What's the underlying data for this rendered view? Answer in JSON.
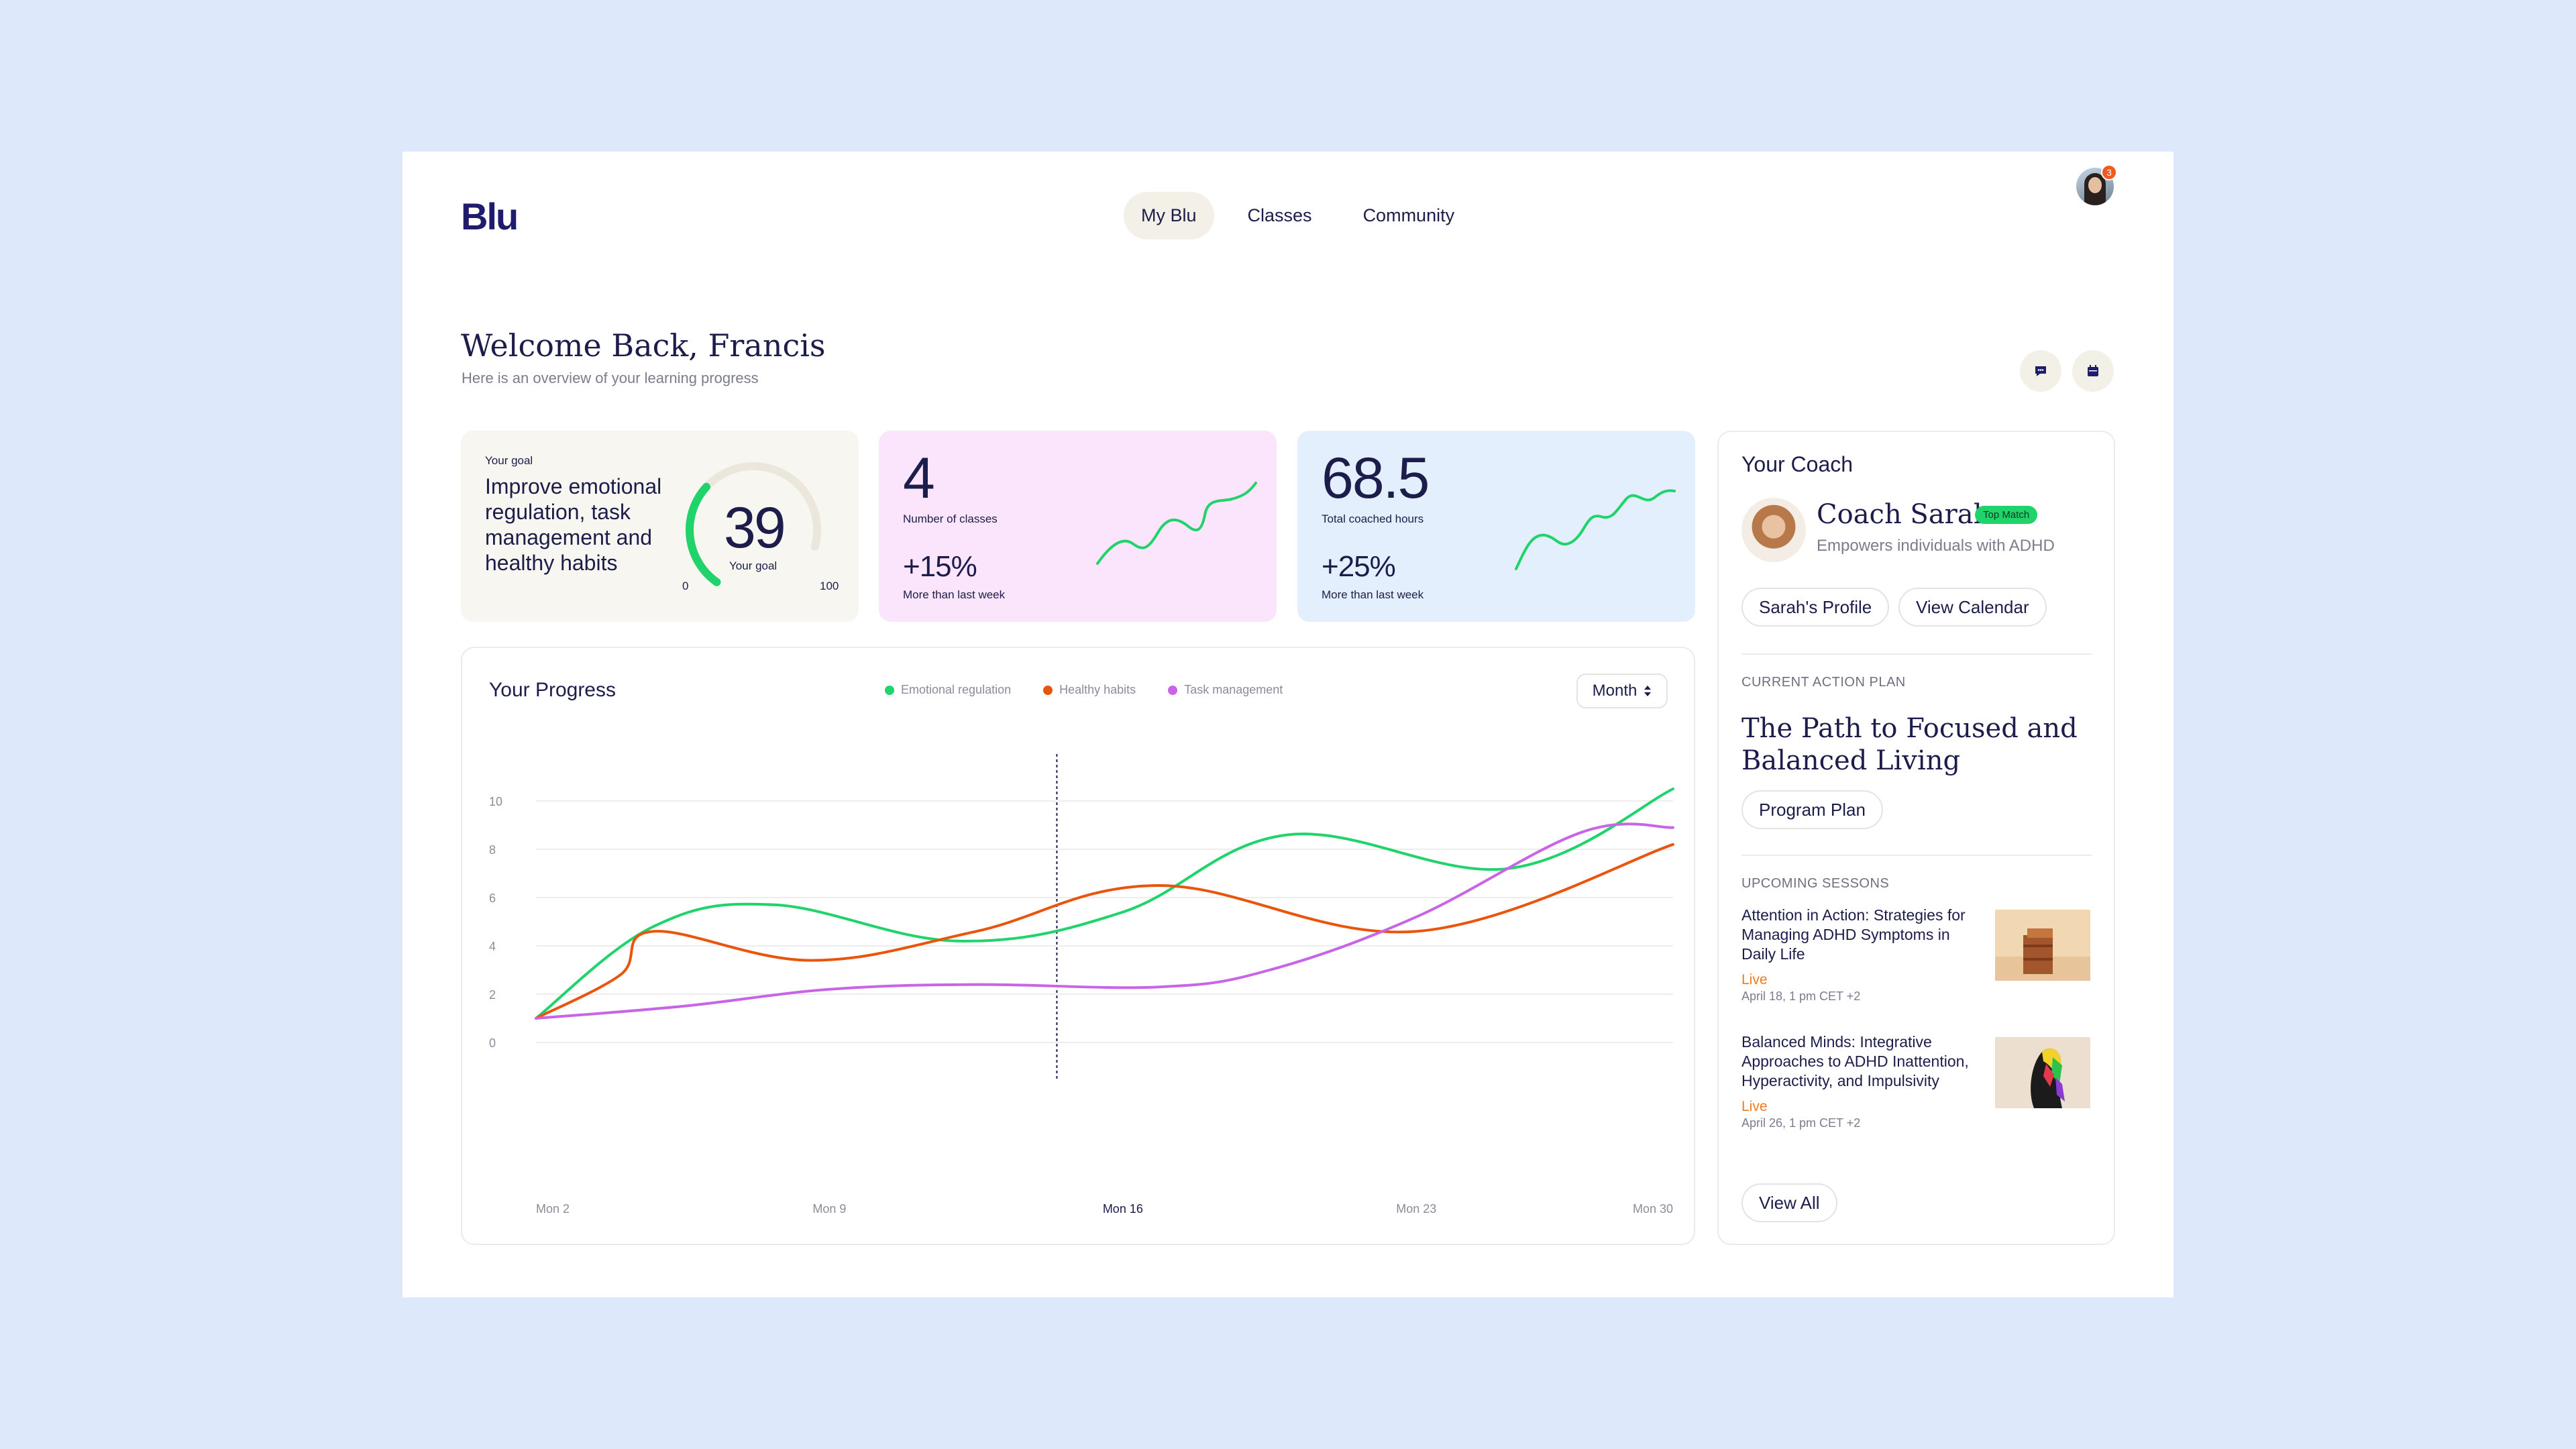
{
  "app": {
    "logo": "Blu"
  },
  "nav": {
    "tabs": [
      {
        "label": "My Blu",
        "active": true
      },
      {
        "label": "Classes"
      },
      {
        "label": "Community"
      }
    ]
  },
  "profile": {
    "notification_count": "3"
  },
  "welcome": {
    "title": "Welcome Back, Francis",
    "subtitle": "Here is an overview of your learning progress"
  },
  "goal": {
    "label": "Your goal",
    "text": "Improve emotional regulation, task management and healthy habits",
    "value": "39",
    "value_caption": "Your goal",
    "min": "0",
    "max": "100",
    "progress_fraction": 0.39
  },
  "classes": {
    "value": "4",
    "label": "Number of classes",
    "change": "+15%",
    "change_label": "More than last week"
  },
  "hours": {
    "value": "68.5",
    "label": "Total coached hours",
    "change": "+25%",
    "change_label": "More than last week"
  },
  "progress": {
    "title": "Your Progress",
    "period_button": "Month",
    "legend": [
      {
        "name": "Emotional regulation",
        "color": "#20d36a"
      },
      {
        "name": "Healthy habits",
        "color": "#e9550c"
      },
      {
        "name": "Task management",
        "color": "#c865e6"
      }
    ]
  },
  "chart_data": {
    "type": "line",
    "title": "Your Progress",
    "x_tick_labels": [
      "Mon 2",
      "Mon 9",
      "Mon 16",
      "Mon 23",
      "Mon 30"
    ],
    "highlighted_x": "Mon 16",
    "y_ticks": [
      "0",
      "2",
      "4",
      "6",
      "8",
      "10"
    ],
    "ylim": [
      0,
      10
    ],
    "grid": true,
    "legend_position": "top-center",
    "series": [
      {
        "name": "Emotional regulation",
        "color": "#20d36a",
        "x": [
          0,
          3.2,
          6.5,
          11.5,
          16,
          20.5,
          26.5,
          31
        ],
        "y": [
          1,
          4.8,
          5.7,
          4.2,
          5.4,
          8.6,
          7.2,
          10.5
        ]
      },
      {
        "name": "Healthy habits",
        "color": "#e9550c",
        "x": [
          0,
          2.3,
          3.2,
          7.5,
          12,
          17,
          24,
          31
        ],
        "y": [
          1,
          2.8,
          4.6,
          3.4,
          4.6,
          6.5,
          4.6,
          8.2
        ]
      },
      {
        "name": "Task management",
        "color": "#c865e6",
        "x": [
          0,
          4,
          8,
          12,
          17,
          20,
          24,
          28.5,
          31
        ],
        "y": [
          1,
          1.5,
          2.2,
          2.4,
          2.3,
          3.0,
          5.2,
          8.7,
          8.9
        ]
      }
    ]
  },
  "coach": {
    "heading": "Your Coach",
    "name": "Coach Sarah",
    "badge": "Top Match",
    "description": "Empowers individuals with ADHD",
    "profile_button": "Sarah's Profile",
    "calendar_button": "View Calendar"
  },
  "action_plan": {
    "label": "CURRENT ACTION PLAN",
    "title": "The Path to Focused and Balanced Living",
    "button": "Program Plan"
  },
  "sessions": {
    "label": "UPCOMING SESSONS",
    "items": [
      {
        "title": "Attention in Action: Strategies for Managing ADHD Symptoms in Daily Life",
        "status": "Live",
        "date": "April 18, 1 pm CET +2"
      },
      {
        "title": "Balanced Minds: Integrative Approaches to ADHD Inattention, Hyperactivity, and Impulsivity",
        "status": "Live",
        "date": "April 26, 1 pm CET +2"
      }
    ],
    "view_all": "View All"
  }
}
